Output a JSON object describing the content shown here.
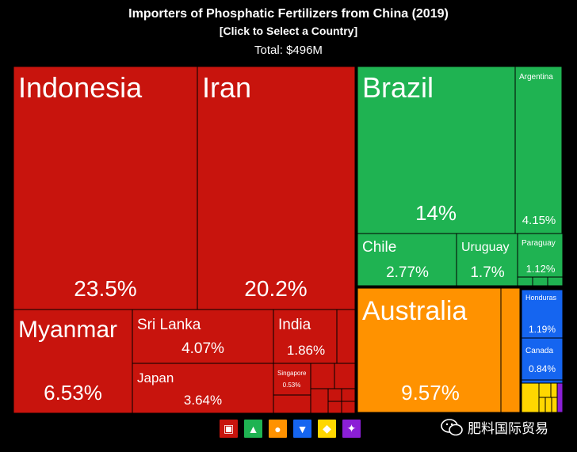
{
  "header": {
    "title": "Importers of Phosphatic Fertilizers from China (2019)",
    "subtitle": "[Click to Select a Country]",
    "total": "Total: $496M"
  },
  "colors": {
    "asia": "#c8140d",
    "americas": "#1fb352",
    "oceania": "#ff9200",
    "north_america": "#1565f0",
    "africa": "#ffd700",
    "europe": "#8b1fd6"
  },
  "chart_data": {
    "type": "treemap",
    "title": "Importers of Phosphatic Fertilizers from China (2019)",
    "total": "$496M",
    "unit": "share of total (%)",
    "countries": [
      {
        "name": "Indonesia",
        "share": 23.5,
        "label": "23.5%",
        "region": "asia"
      },
      {
        "name": "Iran",
        "share": 20.2,
        "label": "20.2%",
        "region": "asia"
      },
      {
        "name": "Myanmar",
        "share": 6.53,
        "label": "6.53%",
        "region": "asia"
      },
      {
        "name": "Sri Lanka",
        "share": 4.07,
        "label": "4.07%",
        "region": "asia"
      },
      {
        "name": "Japan",
        "share": 3.64,
        "label": "3.64%",
        "region": "asia"
      },
      {
        "name": "India",
        "share": 1.86,
        "label": "1.86%",
        "region": "asia"
      },
      {
        "name": "Singapore",
        "share": 0.53,
        "label": "0.53%",
        "region": "asia"
      },
      {
        "name": "Brazil",
        "share": 14,
        "label": "14%",
        "region": "americas"
      },
      {
        "name": "Argentina",
        "share": 4.15,
        "label": "4.15%",
        "region": "americas"
      },
      {
        "name": "Chile",
        "share": 2.77,
        "label": "2.77%",
        "region": "americas"
      },
      {
        "name": "Uruguay",
        "share": 1.7,
        "label": "1.7%",
        "region": "americas"
      },
      {
        "name": "Paraguay",
        "share": 1.12,
        "label": "1.12%",
        "region": "americas"
      },
      {
        "name": "Australia",
        "share": 9.57,
        "label": "9.57%",
        "region": "oceania"
      },
      {
        "name": "Honduras",
        "share": 1.19,
        "label": "1.19%",
        "region": "north_america"
      },
      {
        "name": "Canada",
        "share": 0.84,
        "label": "0.84%",
        "region": "north_america"
      }
    ]
  },
  "legend": [
    {
      "region": "asia",
      "icon": "asia-map-icon"
    },
    {
      "region": "americas",
      "icon": "south-america-map-icon"
    },
    {
      "region": "oceania",
      "icon": "oceania-map-icon"
    },
    {
      "region": "north_america",
      "icon": "north-america-map-icon"
    },
    {
      "region": "africa",
      "icon": "africa-map-icon"
    },
    {
      "region": "europe",
      "icon": "europe-map-icon"
    }
  ],
  "watermark": {
    "text": "肥料国际贸易",
    "icon": "wechat-icon"
  }
}
